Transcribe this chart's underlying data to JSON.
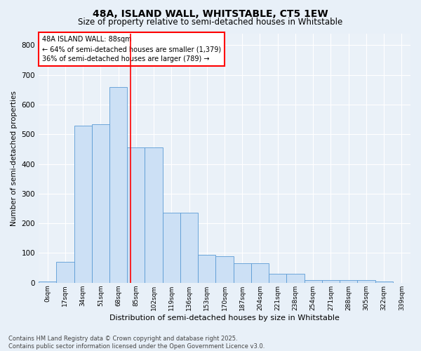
{
  "title1": "48A, ISLAND WALL, WHITSTABLE, CT5 1EW",
  "title2": "Size of property relative to semi-detached houses in Whitstable",
  "xlabel": "Distribution of semi-detached houses by size in Whitstable",
  "ylabel": "Number of semi-detached properties",
  "bin_labels": [
    "0sqm",
    "17sqm",
    "34sqm",
    "51sqm",
    "68sqm",
    "85sqm",
    "102sqm",
    "119sqm",
    "136sqm",
    "153sqm",
    "170sqm",
    "187sqm",
    "204sqm",
    "221sqm",
    "238sqm",
    "254sqm",
    "271sqm",
    "288sqm",
    "305sqm",
    "322sqm",
    "339sqm"
  ],
  "bar_values": [
    5,
    70,
    530,
    535,
    660,
    455,
    455,
    235,
    235,
    95,
    90,
    65,
    65,
    30,
    30,
    10,
    10,
    10,
    10,
    5,
    0
  ],
  "bar_color": "#cce0f5",
  "bar_edge_color": "#5b9bd5",
  "vline_x": 5.18,
  "vline_color": "red",
  "annotation_title": "48A ISLAND WALL: 88sqm",
  "annotation_line1": "← 64% of semi-detached houses are smaller (1,379)",
  "annotation_line2": "36% of semi-detached houses are larger (789) →",
  "ylim": [
    0,
    840
  ],
  "yticks": [
    0,
    100,
    200,
    300,
    400,
    500,
    600,
    700,
    800
  ],
  "footer1": "Contains HM Land Registry data © Crown copyright and database right 2025.",
  "footer2": "Contains public sector information licensed under the Open Government Licence v3.0.",
  "bg_color": "#e8f0f8",
  "plot_bg_color": "#eaf1f8"
}
